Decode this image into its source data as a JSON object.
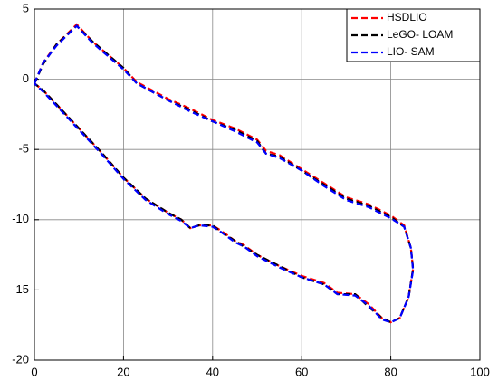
{
  "chart_data": {
    "type": "line",
    "xlim": [
      0,
      100
    ],
    "xticks": [
      0,
      20,
      40,
      60,
      80,
      100
    ],
    "ylim": [
      -20,
      5
    ],
    "yticks": [
      -20,
      -15,
      -10,
      -5,
      0,
      5
    ],
    "grid": true,
    "legend": "top-right",
    "dashed": true,
    "series": [
      {
        "name": "HSDLIO",
        "color": "#ff0000",
        "x": [
          0,
          2,
          5,
          9.5,
          13,
          20,
          23,
          30,
          35,
          40,
          45,
          50,
          52,
          55,
          60,
          65,
          70,
          75,
          80,
          83,
          84.5,
          85,
          84,
          82,
          80,
          78,
          75,
          72,
          68,
          65,
          60,
          55,
          50,
          47,
          45,
          42,
          40,
          37,
          35,
          33,
          30,
          25,
          20,
          15,
          10,
          5,
          2,
          0
        ],
        "values": [
          -0.3,
          1.2,
          2.5,
          3.9,
          2.7,
          0.8,
          -0.2,
          -1.4,
          -2.1,
          -2.9,
          -3.5,
          -4.3,
          -5.1,
          -5.4,
          -6.4,
          -7.4,
          -8.4,
          -8.9,
          -9.7,
          -10.4,
          -12,
          -13.5,
          -15.5,
          -17,
          -17.3,
          -17,
          -16,
          -15.3,
          -15.2,
          -14.5,
          -14.0,
          -13.3,
          -12.5,
          -11.8,
          -11.5,
          -10.8,
          -10.4,
          -10.4,
          -10.6,
          -10.0,
          -9.5,
          -8.5,
          -7.0,
          -5.2,
          -3.5,
          -1.8,
          -0.8,
          -0.3
        ]
      },
      {
        "name": "LeGO- LOAM",
        "color": "#000000",
        "x": [
          0,
          2,
          5,
          9.5,
          13,
          20,
          23,
          30,
          35,
          40,
          45,
          50,
          52,
          55,
          60,
          65,
          70,
          75,
          80,
          83,
          84.5,
          85,
          84,
          82,
          80,
          78,
          75,
          72,
          68,
          65,
          60,
          55,
          50,
          47,
          45,
          42,
          40,
          37,
          35,
          33,
          30,
          25,
          20,
          15,
          10,
          5,
          2,
          0
        ],
        "values": [
          -0.3,
          1.1,
          2.5,
          3.8,
          2.7,
          0.8,
          -0.3,
          -1.5,
          -2.2,
          -3.0,
          -3.6,
          -4.4,
          -5.3,
          -5.5,
          -6.5,
          -7.5,
          -8.5,
          -9.0,
          -9.8,
          -10.5,
          -12,
          -13.5,
          -15.5,
          -17,
          -17.3,
          -17,
          -16.2,
          -15.3,
          -15.3,
          -14.6,
          -14.1,
          -13.3,
          -12.5,
          -11.9,
          -11.5,
          -10.9,
          -10.4,
          -10.4,
          -10.6,
          -10.0,
          -9.5,
          -8.5,
          -7.0,
          -5.2,
          -3.5,
          -1.8,
          -0.8,
          -0.3
        ]
      },
      {
        "name": "LIO- SAM",
        "color": "#0000ff",
        "x": [
          0,
          2,
          5,
          9.5,
          13,
          20,
          23,
          30,
          35,
          40,
          45,
          50,
          52,
          55,
          60,
          65,
          70,
          75,
          80,
          83,
          84.5,
          85,
          84,
          82,
          80,
          78,
          75,
          72,
          68,
          65,
          60,
          55,
          50,
          47,
          45,
          42,
          40,
          37,
          35,
          33,
          30,
          25,
          20,
          15,
          10,
          5,
          2,
          0
        ],
        "values": [
          -0.3,
          1.2,
          2.4,
          3.8,
          2.6,
          0.7,
          -0.3,
          -1.5,
          -2.3,
          -3.0,
          -3.7,
          -4.5,
          -5.3,
          -5.6,
          -6.5,
          -7.6,
          -8.6,
          -9.1,
          -9.9,
          -10.5,
          -12,
          -13.6,
          -15.5,
          -17,
          -17.3,
          -17.1,
          -16.1,
          -15.4,
          -15.3,
          -14.6,
          -14.1,
          -13.4,
          -12.6,
          -11.9,
          -11.6,
          -10.9,
          -10.5,
          -10.4,
          -10.6,
          -10.1,
          -9.6,
          -8.6,
          -7.1,
          -5.3,
          -3.6,
          -1.9,
          -0.9,
          -0.3
        ]
      }
    ]
  }
}
